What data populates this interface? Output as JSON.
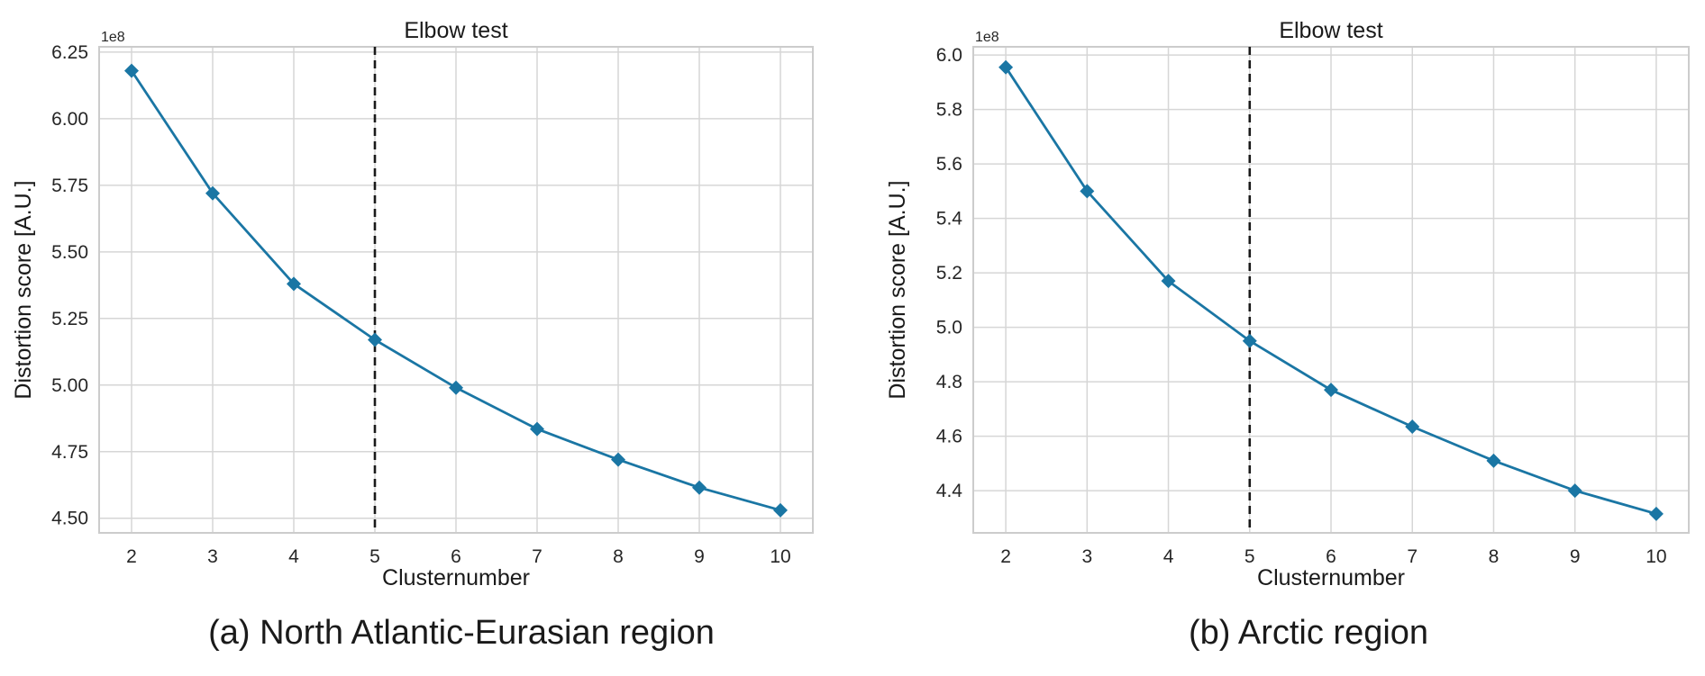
{
  "chart_data": [
    {
      "type": "line",
      "title": "Elbow test",
      "xlabel": "Clusternumber",
      "ylabel": "Distortion score [A.U.]",
      "y_offset_label": "1e8",
      "caption": "(a) North Atlantic-Eurasian region",
      "x": [
        2,
        3,
        4,
        5,
        6,
        7,
        8,
        9,
        10
      ],
      "y": [
        6.18,
        5.72,
        5.38,
        5.17,
        4.99,
        4.835,
        4.72,
        4.615,
        4.53
      ],
      "xticks": [
        "2",
        "3",
        "4",
        "5",
        "6",
        "7",
        "8",
        "9",
        "10"
      ],
      "yticks": [
        "4.50",
        "4.75",
        "5.00",
        "5.25",
        "5.50",
        "5.75",
        "6.00",
        "6.25"
      ],
      "xlim": [
        1.6,
        10.4
      ],
      "ylim": [
        4.445,
        6.27
      ],
      "elbow_x": 5,
      "grid": true,
      "line_color": "#1a76a4",
      "marker": "diamond"
    },
    {
      "type": "line",
      "title": "Elbow test",
      "xlabel": "Clusternumber",
      "ylabel": "Distortion score [A.U.]",
      "y_offset_label": "1e8",
      "caption": "(b) Arctic region",
      "x": [
        2,
        3,
        4,
        5,
        6,
        7,
        8,
        9,
        10
      ],
      "y": [
        5.955,
        5.5,
        5.17,
        4.95,
        4.77,
        4.635,
        4.51,
        4.4,
        4.315
      ],
      "xticks": [
        "2",
        "3",
        "4",
        "5",
        "6",
        "7",
        "8",
        "9",
        "10"
      ],
      "yticks": [
        "4.4",
        "4.6",
        "4.8",
        "5.0",
        "5.2",
        "5.4",
        "5.6",
        "5.8",
        "6.0"
      ],
      "xlim": [
        1.6,
        10.4
      ],
      "ylim": [
        4.245,
        6.03
      ],
      "elbow_x": 5,
      "grid": true,
      "line_color": "#1a76a4",
      "marker": "diamond"
    }
  ]
}
